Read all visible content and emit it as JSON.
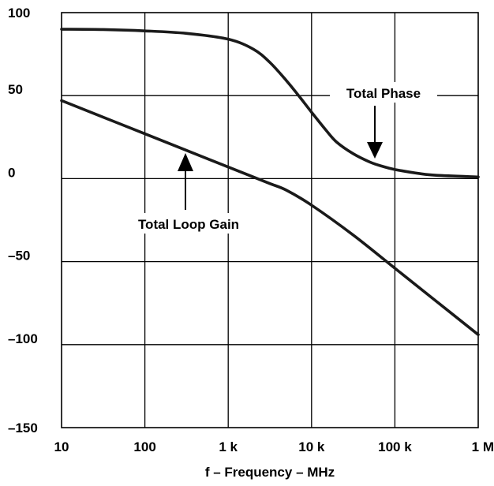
{
  "chart_data": {
    "type": "line",
    "xscale": "log",
    "xlabel": "f – Frequency – MHz",
    "ylabel": "",
    "xlim": [
      10,
      1000000
    ],
    "ylim": [
      -150,
      100
    ],
    "grid": true,
    "x_ticks": [
      {
        "value": 10,
        "label": "10"
      },
      {
        "value": 100,
        "label": "100"
      },
      {
        "value": 1000,
        "label": "1 k"
      },
      {
        "value": 10000,
        "label": "10 k"
      },
      {
        "value": 100000,
        "label": "100 k"
      },
      {
        "value": 1000000,
        "label": "1 M"
      }
    ],
    "y_ticks": [
      {
        "value": 100,
        "label": "100"
      },
      {
        "value": 50,
        "label": "50"
      },
      {
        "value": 0,
        "label": "0"
      },
      {
        "value": -50,
        "label": "–50"
      },
      {
        "value": -100,
        "label": "–100"
      },
      {
        "value": -150,
        "label": "–150"
      }
    ],
    "series": [
      {
        "name": "Total Phase",
        "x": [
          10,
          31.6,
          100,
          316,
          1000,
          2000,
          3162,
          5000,
          7000,
          10000,
          15000,
          20000,
          31623,
          50000,
          70000,
          100000,
          200000,
          316228,
          1000000
        ],
        "y": [
          90,
          89.8,
          89,
          87.5,
          84,
          78,
          70,
          59,
          50,
          40,
          29,
          22,
          15,
          10,
          7.5,
          5.5,
          3,
          2,
          1
        ]
      },
      {
        "name": "Total Loop Gain",
        "x": [
          10,
          100,
          1000,
          2000,
          3162,
          5000,
          10000,
          31623,
          100000,
          316228,
          1000000
        ],
        "y": [
          47,
          27,
          7,
          1,
          -3,
          -7,
          -16,
          -34,
          -54,
          -74,
          -94
        ]
      }
    ],
    "annotations": [
      {
        "text": "Total Phase",
        "points_to_series": "Total Phase"
      },
      {
        "text": "Total Loop Gain",
        "points_to_series": "Total Loop Gain"
      }
    ]
  }
}
